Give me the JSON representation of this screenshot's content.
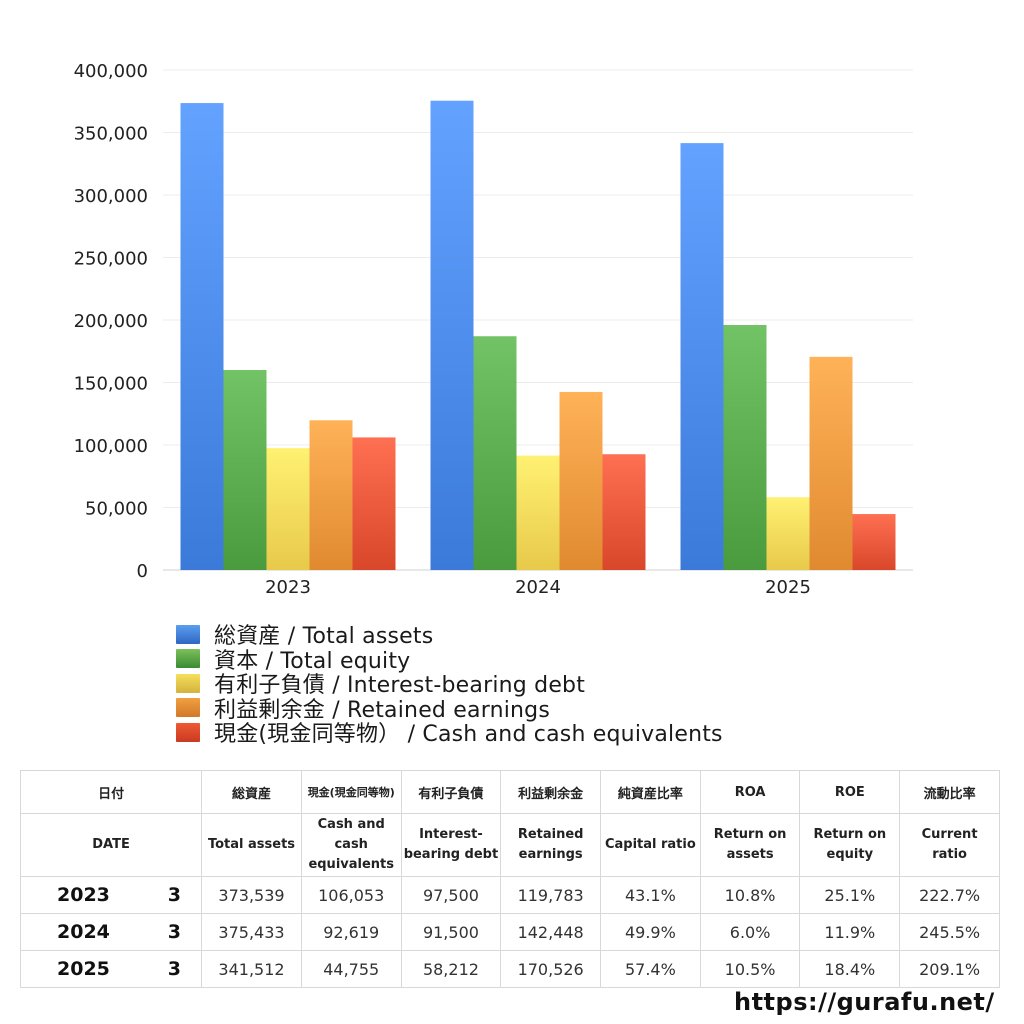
{
  "chart_data": {
    "type": "bar",
    "categories": [
      "2023",
      "2024",
      "2025"
    ],
    "series": [
      {
        "name": "総資産 / Total assets",
        "values": [
          373539,
          375433,
          341512
        ],
        "color": "#3b7ad9"
      },
      {
        "name": "資本 / Total equity",
        "values": [
          160000,
          187000,
          196000
        ],
        "color": "#4a9a3e"
      },
      {
        "name": "有利子負債 / Interest-bearing debt",
        "values": [
          97500,
          91500,
          58212
        ],
        "color": "#e8c94a"
      },
      {
        "name": "利益剰余金 / Retained earnings",
        "values": [
          119783,
          142448,
          170526
        ],
        "color": "#e08a30"
      },
      {
        "name": "現金(現金同等物）  /  Cash and cash equivalents",
        "values": [
          106053,
          92619,
          44755
        ],
        "color": "#d9472a"
      }
    ],
    "ylim": [
      0,
      400000
    ],
    "yticks": [
      "0",
      "50,000",
      "100,000",
      "150,000",
      "200,000",
      "250,000",
      "300,000",
      "350,000",
      "400,000"
    ],
    "grid": true,
    "legend_position": "bottom-left"
  },
  "table": {
    "header_jp": [
      "日付",
      "総資産",
      "現金(現金同等物)",
      "有利子負債",
      "利益剰余金",
      "純資産比率",
      "ROA",
      "ROE",
      "流動比率"
    ],
    "header_en": [
      "DATE",
      "Total assets",
      "Cash and cash equivalents",
      "Interest-bearing debt",
      "Retained earnings",
      "Capital ratio",
      "Return on assets",
      "Return on equity",
      "Current ratio"
    ],
    "rows": [
      {
        "year": "2023",
        "month": "3",
        "total_assets": "373,539",
        "cash": "106,053",
        "debt": "97,500",
        "retained": "119,783",
        "capital_ratio": "43.1%",
        "roa": "10.8%",
        "roe": "25.1%",
        "current_ratio": "222.7%"
      },
      {
        "year": "2024",
        "month": "3",
        "total_assets": "375,433",
        "cash": "92,619",
        "debt": "91,500",
        "retained": "142,448",
        "capital_ratio": "49.9%",
        "roa": "6.0%",
        "roe": "11.9%",
        "current_ratio": "245.5%"
      },
      {
        "year": "2025",
        "month": "3",
        "total_assets": "341,512",
        "cash": "44,755",
        "debt": "58,212",
        "retained": "170,526",
        "capital_ratio": "57.4%",
        "roa": "10.5%",
        "roe": "18.4%",
        "current_ratio": "209.1%"
      }
    ]
  },
  "site_url": "https://gurafu.net/"
}
